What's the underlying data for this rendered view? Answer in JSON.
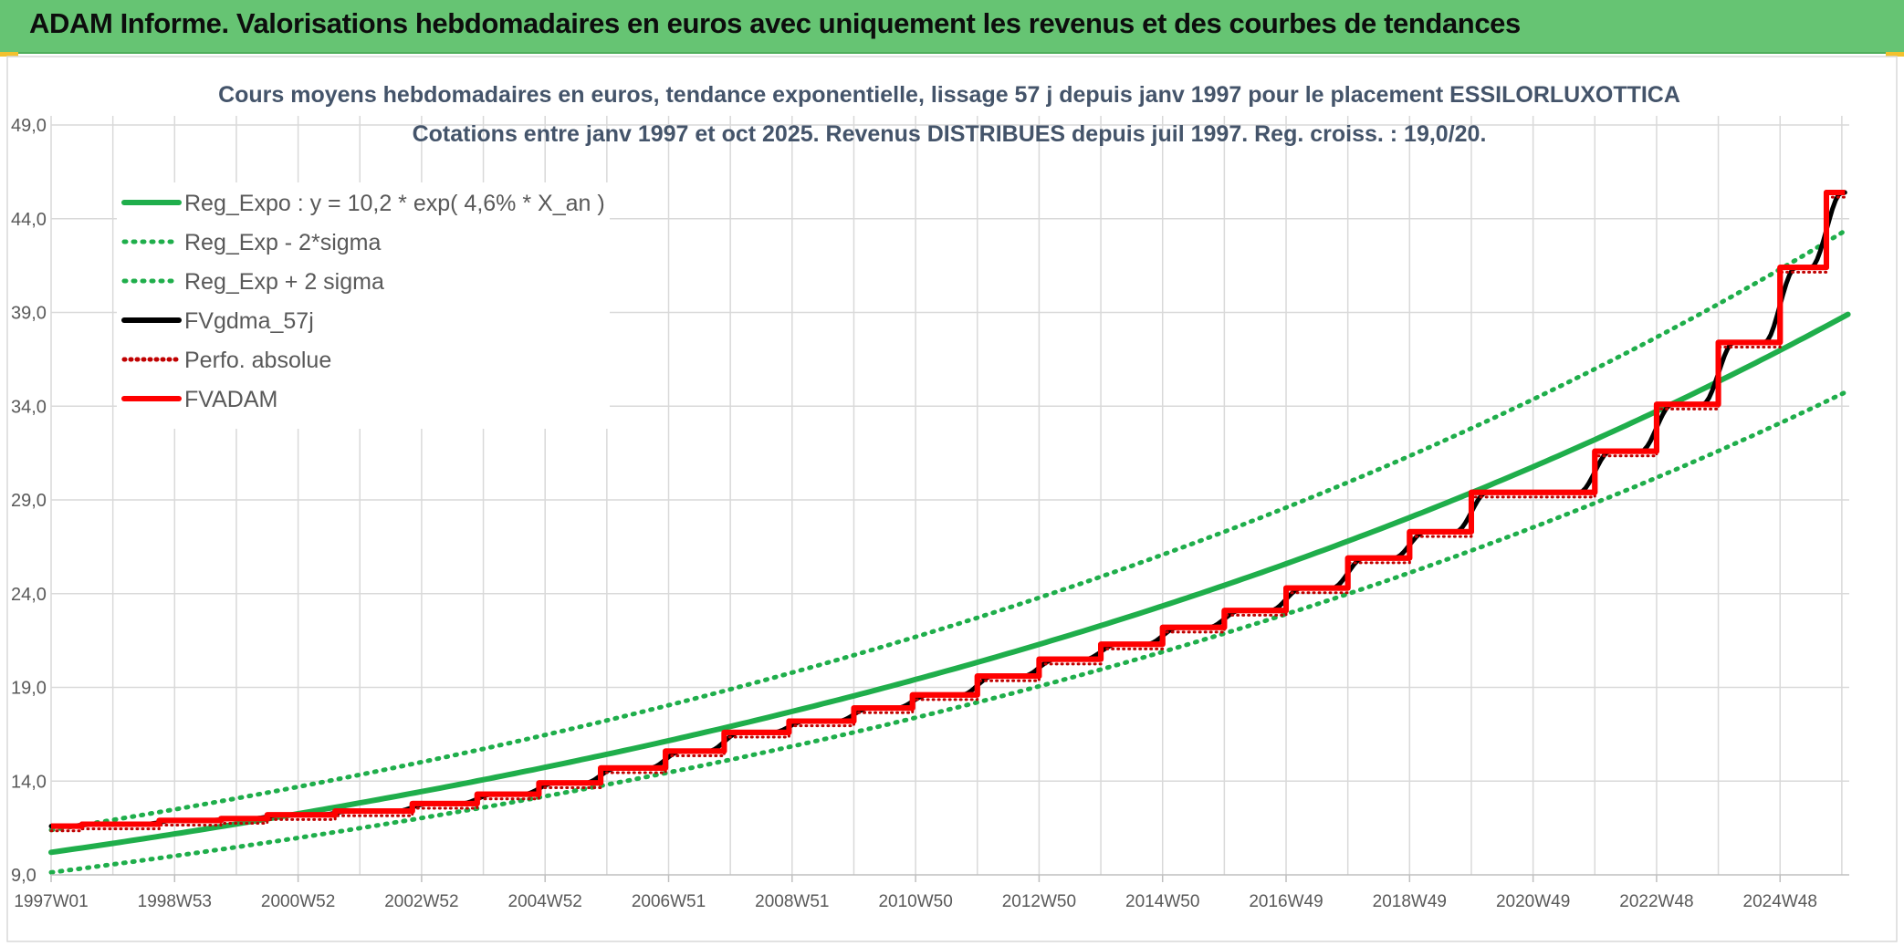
{
  "header": {
    "title": "ADAM Informe. Valorisations hebdomadaires en euros avec uniquement les revenus et des courbes de tendances"
  },
  "colors": {
    "header_bg": "#66c473",
    "trend_green": "#1fae4b",
    "fv_black": "#000000",
    "fvadam_red": "#ff0000",
    "perfo_red": "#c00000",
    "grid": "#d9d9d9"
  },
  "chart_data": {
    "type": "line",
    "title": "Cours moyens hebdomadaires en euros, tendance exponentielle, lissage 57 j depuis janv 1997 pour le placement ESSILORLUXOTTICA",
    "subtitle": "Cotations entre janv 1997 et oct 2025. Revenus DISTRIBUES depuis juil 1997. Reg. croiss. : 19,0/20.",
    "xlabel": "",
    "ylabel": "",
    "ylim": [
      9.0,
      49.0
    ],
    "xlim": [
      1997.0,
      2025.75
    ],
    "grid": true,
    "legend_position": "top-left",
    "y_ticks": [
      "49,0",
      "44,0",
      "39,0",
      "34,0",
      "29,0",
      "24,0",
      "19,0",
      "14,0",
      "9,0"
    ],
    "x_ticks": [
      "1997W01",
      "1998W53",
      "2000W52",
      "2002W52",
      "2004W52",
      "2006W51",
      "2008W51",
      "2010W50",
      "2012W50",
      "2014W50",
      "2016W49",
      "2018W49",
      "2020W49",
      "2022W48",
      "2024W48"
    ],
    "x_tick_years": [
      1997.0,
      1999.0,
      2001.0,
      2003.0,
      2005.0,
      2007.0,
      2009.0,
      2011.0,
      2013.0,
      2015.0,
      2017.0,
      2019.0,
      2021.0,
      2023.0,
      2025.0
    ],
    "series": [
      {
        "name": "Reg_Expo : y = 10,2 * exp( 4,6% *  X_an )",
        "kind": "expo",
        "a": 10.2,
        "rate": 0.046,
        "factor": 1.0,
        "color": "#1fae4b",
        "dash": "solid"
      },
      {
        "name": "Reg_Exp - 2*sigma",
        "kind": "expo",
        "a": 10.2,
        "rate": 0.046,
        "factor": 0.895,
        "color": "#1fae4b",
        "dash": "dotted"
      },
      {
        "name": "Reg_Exp + 2 sigma",
        "kind": "expo",
        "a": 10.2,
        "rate": 0.046,
        "factor": 1.117,
        "color": "#1fae4b",
        "dash": "dotted"
      },
      {
        "name": "FVgdma_57j",
        "kind": "smooth_steps",
        "color": "#000000",
        "dash": "solid"
      },
      {
        "name": "Perfo. absolue",
        "kind": "steps",
        "color": "#c00000",
        "dash": "dotted"
      },
      {
        "name": "FVADAM",
        "kind": "steps",
        "color": "#ff0000",
        "dash": "solid",
        "start_value": 11.6,
        "steps": [
          {
            "x": 1997.5,
            "y": 11.7
          },
          {
            "x": 1998.75,
            "y": 11.9
          },
          {
            "x": 1999.75,
            "y": 12.0
          },
          {
            "x": 2000.5,
            "y": 12.2
          },
          {
            "x": 2001.6,
            "y": 12.4
          },
          {
            "x": 2002.85,
            "y": 12.8
          },
          {
            "x": 2003.9,
            "y": 13.3
          },
          {
            "x": 2004.9,
            "y": 13.9
          },
          {
            "x": 2005.9,
            "y": 14.7
          },
          {
            "x": 2006.95,
            "y": 15.6
          },
          {
            "x": 2007.9,
            "y": 16.6
          },
          {
            "x": 2008.95,
            "y": 17.2
          },
          {
            "x": 2010.0,
            "y": 17.9
          },
          {
            "x": 2010.95,
            "y": 18.6
          },
          {
            "x": 2012.0,
            "y": 19.6
          },
          {
            "x": 2013.0,
            "y": 20.5
          },
          {
            "x": 2014.0,
            "y": 21.3
          },
          {
            "x": 2015.0,
            "y": 22.2
          },
          {
            "x": 2016.0,
            "y": 23.1
          },
          {
            "x": 2017.0,
            "y": 24.3
          },
          {
            "x": 2018.0,
            "y": 25.9
          },
          {
            "x": 2019.0,
            "y": 27.3
          },
          {
            "x": 2020.0,
            "y": 29.4
          },
          {
            "x": 2022.0,
            "y": 31.6
          },
          {
            "x": 2023.0,
            "y": 34.1
          },
          {
            "x": 2024.0,
            "y": 37.4
          },
          {
            "x": 2025.0,
            "y": 41.4
          },
          {
            "x": 2025.75,
            "y": 45.4
          }
        ],
        "end_x": 2026.05
      }
    ]
  }
}
